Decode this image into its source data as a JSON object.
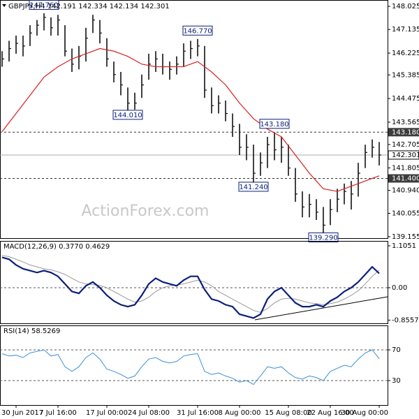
{
  "chart_data": [
    {
      "type": "ohlc",
      "title": "GBPJPY,H4  142.191 142.334 142.134 142.301",
      "watermark": "ActionForex.com",
      "categories": [
        null,
        null,
        "30 Jun 2017",
        null,
        null,
        null,
        null,
        null,
        "7 Jul 16:00",
        null,
        null,
        null,
        null,
        null,
        null,
        "17 Jul 00:00",
        null,
        null,
        null,
        null,
        null,
        "24 Jul 08:00",
        null,
        null,
        null,
        null,
        null,
        null,
        "31 Jul 16:00",
        null,
        null,
        null,
        null,
        null,
        "8 Aug 00:00",
        null,
        null,
        null,
        null,
        null,
        null,
        "15 Aug 08:00",
        null,
        null,
        null,
        null,
        null,
        "22 Aug 16:00",
        null,
        null,
        null,
        null,
        null,
        null,
        "30 Aug 00:00"
      ],
      "high": [
        146.3,
        146.7,
        146.9,
        146.9,
        147.3,
        147.5,
        147.76,
        147.6,
        147.7,
        147.3,
        146.4,
        146.5,
        147.2,
        147.7,
        147.5,
        146.8,
        145.9,
        145.5,
        144.9,
        144.7,
        145.4,
        146.2,
        146.3,
        146.2,
        145.9,
        146.1,
        146.6,
        146.7,
        146.77,
        146.5,
        144.9,
        144.6,
        144.4,
        143.9,
        143.5,
        143.1,
        142.7,
        142.4,
        143.0,
        143.18,
        143.0,
        142.7,
        141.8,
        140.9,
        140.8,
        140.6,
        140.3,
        140.6,
        141.0,
        141.2,
        141.3,
        142.0,
        142.7,
        142.9,
        142.8
      ],
      "low": [
        145.7,
        145.9,
        146.2,
        146.1,
        146.5,
        146.9,
        147.1,
        146.9,
        146.9,
        146.1,
        145.5,
        145.6,
        145.9,
        147.0,
        146.6,
        145.7,
        145.1,
        144.6,
        144.01,
        144.05,
        144.5,
        145.2,
        145.5,
        145.4,
        145.2,
        145.4,
        145.7,
        146.0,
        146.1,
        144.5,
        143.9,
        143.9,
        143.6,
        143.0,
        142.3,
        142.1,
        141.24,
        141.5,
        141.8,
        142.1,
        142.0,
        141.5,
        140.5,
        139.9,
        139.9,
        139.8,
        139.29,
        139.6,
        140.1,
        140.4,
        140.2,
        140.7,
        141.8,
        142.2,
        141.9
      ],
      "close": [
        146.0,
        146.4,
        146.6,
        146.5,
        147.0,
        147.3,
        147.6,
        147.2,
        147.5,
        146.3,
        145.8,
        146.1,
        146.8,
        147.5,
        147.0,
        146.0,
        145.4,
        145.0,
        144.3,
        144.3,
        145.0,
        145.8,
        146.0,
        145.7,
        145.6,
        145.8,
        146.3,
        146.4,
        146.5,
        144.8,
        144.2,
        144.3,
        143.9,
        143.4,
        142.6,
        142.6,
        141.6,
        142.0,
        142.7,
        142.5,
        142.6,
        141.8,
        140.8,
        140.3,
        140.4,
        140.1,
        139.6,
        140.2,
        140.6,
        140.9,
        140.8,
        141.6,
        142.4,
        142.6,
        142.301
      ],
      "color": "#111111",
      "ma": [
        143.2,
        143.55,
        143.9,
        144.25,
        144.6,
        144.95,
        145.3,
        145.5,
        145.7,
        145.85,
        146.0,
        146.1,
        146.2,
        146.3,
        146.4,
        146.35,
        146.3,
        146.2,
        146.1,
        145.95,
        145.8,
        145.75,
        145.7,
        145.7,
        145.7,
        145.7,
        145.7,
        145.8,
        145.9,
        145.7,
        145.5,
        145.25,
        145.0,
        144.65,
        144.3,
        144.0,
        143.7,
        143.5,
        143.3,
        143.15,
        143.0,
        142.65,
        142.3,
        141.95,
        141.6,
        141.3,
        141.0,
        140.95,
        140.9,
        141.0,
        141.1,
        141.2,
        141.3,
        141.4,
        141.5
      ],
      "ma_color": "#d42020",
      "annotations": [
        {
          "value": 147.76,
          "label": "147.760"
        },
        {
          "value": 146.77,
          "label": "146.770"
        },
        {
          "value": 144.01,
          "label": "144.010"
        },
        {
          "value": 143.18,
          "label": "143.180"
        },
        {
          "value": 141.24,
          "label": "141.240"
        },
        {
          "value": 139.29,
          "label": "139.290"
        }
      ],
      "levels": [
        {
          "value": 143.18,
          "label": "143.180"
        },
        {
          "value": 141.4,
          "label": "141.400"
        }
      ],
      "last": {
        "value": 142.301,
        "label": "142.301"
      },
      "ylim": [
        139.1,
        148.27
      ],
      "yticks": [
        148.025,
        147.135,
        146.225,
        145.385,
        144.475,
        143.565,
        142.705,
        141.805,
        {
          "value": 140.94,
          "label": "140.940"
        },
        140.055,
        139.155
      ]
    },
    {
      "type": "macd",
      "title": "MACD(12,26,9) 0.3770 0.4629",
      "series": [
        {
          "color": "#0b1f7a",
          "values": [
            0.8,
            0.75,
            0.6,
            0.5,
            0.45,
            0.4,
            0.45,
            0.4,
            0.3,
            0.1,
            -0.1,
            -0.15,
            0.05,
            0.15,
            0.0,
            -0.2,
            -0.35,
            -0.45,
            -0.5,
            -0.45,
            -0.2,
            0.1,
            0.25,
            0.15,
            0.1,
            0.05,
            0.2,
            0.3,
            0.3,
            -0.05,
            -0.3,
            -0.35,
            -0.45,
            -0.5,
            -0.7,
            -0.75,
            -0.8,
            -0.7,
            -0.3,
            -0.1,
            0.0,
            -0.2,
            -0.4,
            -0.5,
            -0.5,
            -0.45,
            -0.5,
            -0.35,
            -0.25,
            -0.1,
            0.0,
            0.15,
            0.35,
            0.55,
            0.377
          ]
        },
        {
          "color": "#999999",
          "values": [
            0.85,
            0.82,
            0.75,
            0.68,
            0.6,
            0.55,
            0.5,
            0.47,
            0.42,
            0.35,
            0.25,
            0.15,
            0.1,
            0.08,
            0.06,
            0.0,
            -0.1,
            -0.2,
            -0.3,
            -0.38,
            -0.35,
            -0.25,
            -0.1,
            0.0,
            0.05,
            0.07,
            0.1,
            0.15,
            0.2,
            0.15,
            0.05,
            -0.1,
            -0.2,
            -0.3,
            -0.4,
            -0.5,
            -0.6,
            -0.65,
            -0.55,
            -0.4,
            -0.3,
            -0.28,
            -0.3,
            -0.35,
            -0.4,
            -0.42,
            -0.45,
            -0.42,
            -0.38,
            -0.3,
            -0.2,
            -0.08,
            0.1,
            0.3,
            0.4629
          ]
        }
      ],
      "ylim": [
        -0.94,
        1.234
      ],
      "yticks": [
        1.1051,
        {
          "value": 0,
          "label": "0.00"
        },
        -0.8557
      ]
    },
    {
      "type": "rsi",
      "title": "RSI(14) 58.5269",
      "series": [
        {
          "color": "#3a8fd8",
          "values": [
            65,
            62,
            63,
            60,
            66,
            68,
            70,
            62,
            64,
            48,
            42,
            48,
            60,
            66,
            58,
            45,
            42,
            38,
            33,
            36,
            48,
            58,
            60,
            55,
            53,
            55,
            62,
            64,
            65,
            42,
            38,
            40,
            36,
            33,
            28,
            30,
            25,
            36,
            48,
            46,
            48,
            40,
            34,
            32,
            36,
            34,
            30,
            42,
            46,
            50,
            48,
            58,
            66,
            70,
            58.5269
          ]
        }
      ],
      "ylim": [
        -1.8,
        101.8
      ],
      "yticks": [
        70,
        30
      ]
    }
  ]
}
